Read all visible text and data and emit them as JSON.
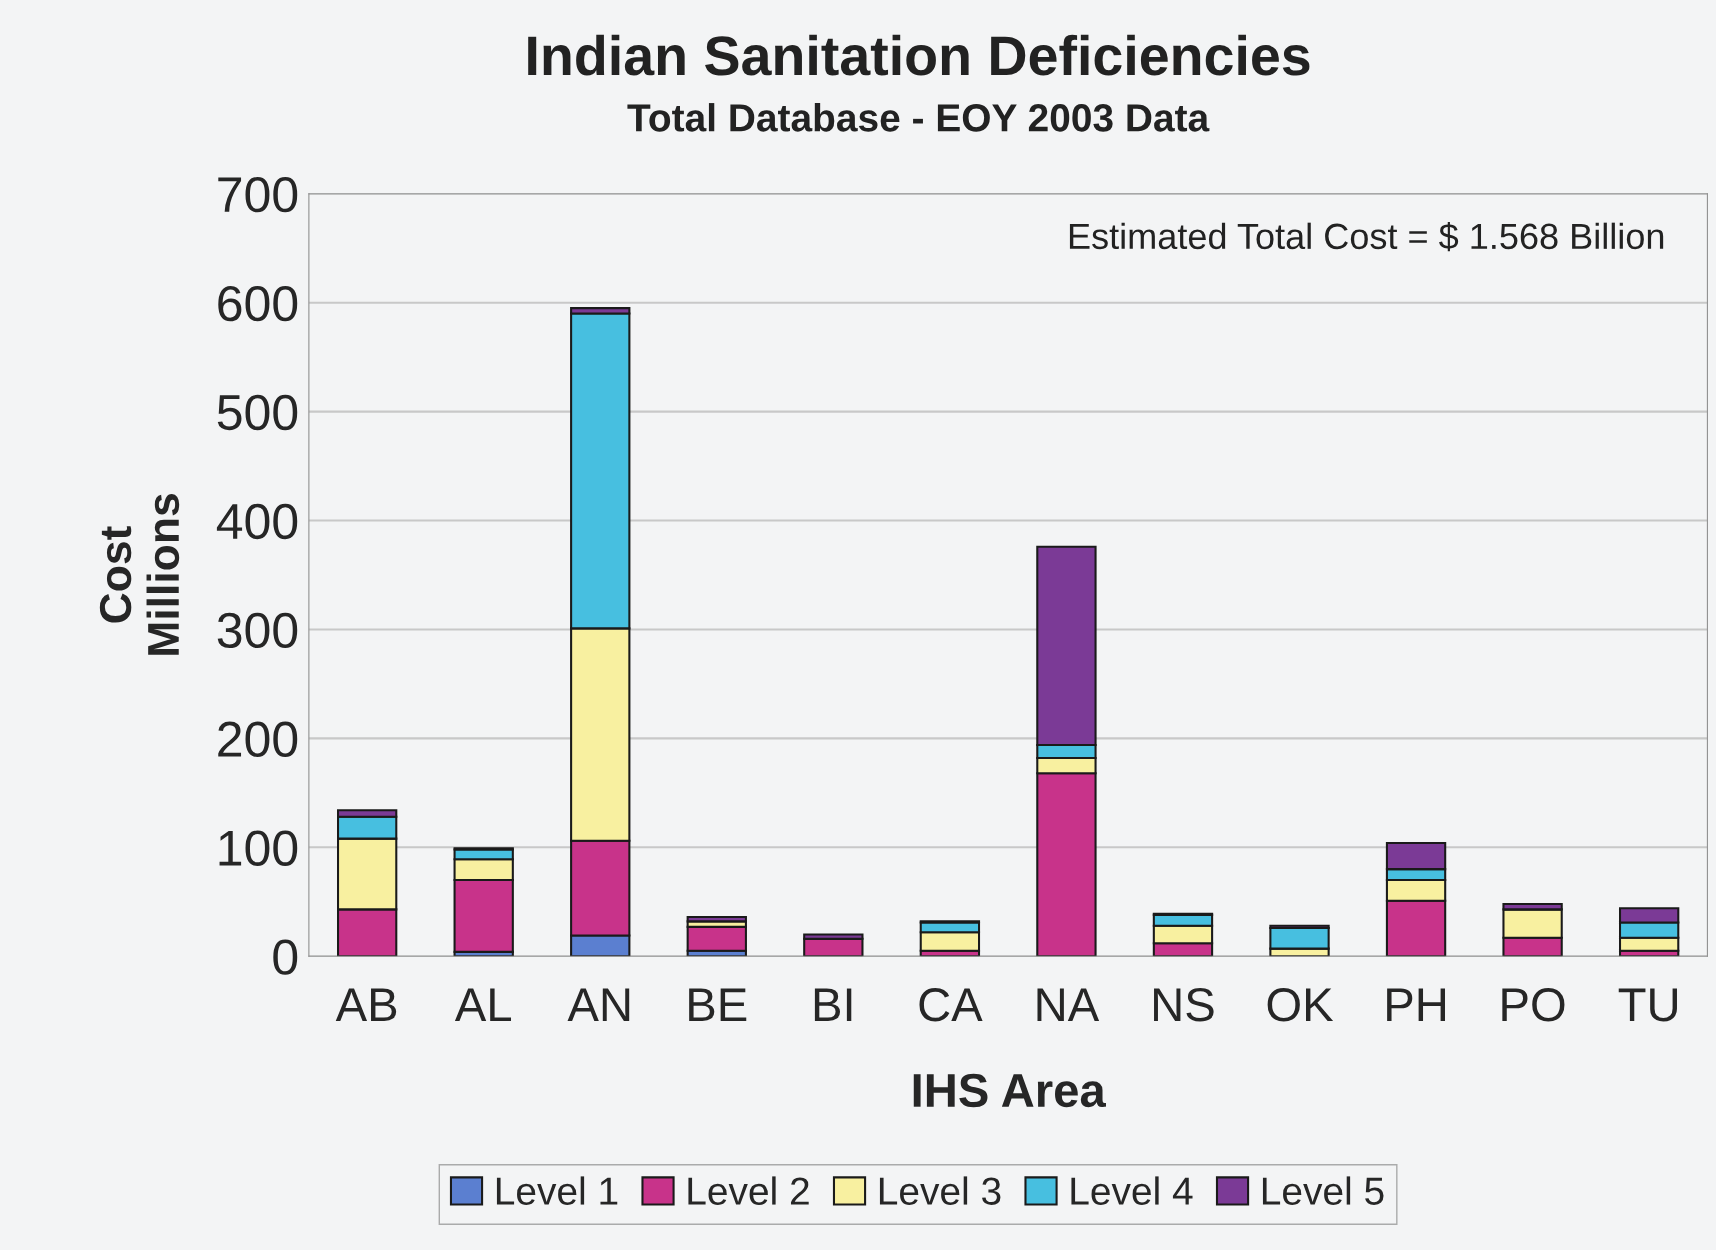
{
  "chart_data": {
    "type": "bar",
    "title": "Indian Sanitation Deficiencies",
    "subtitle": "Total Database - EOY 2003 Data",
    "xlabel": "IHS Area",
    "ylabel": "Cost\nMillions",
    "categories": [
      "AB",
      "AL",
      "AN",
      "BE",
      "BI",
      "CA",
      "NA",
      "NS",
      "OK",
      "PH",
      "PO",
      "TU"
    ],
    "stacked": true,
    "ylim": [
      0,
      700
    ],
    "yticks": [
      0,
      100,
      200,
      300,
      400,
      500,
      600,
      700
    ],
    "grid": "y",
    "legend": "bottom",
    "annotations": [
      "Estimated Total Cost = $ 1.568 Billion"
    ],
    "series": [
      {
        "name": "Level 1",
        "color": "#5b7fd0",
        "values": [
          null,
          4,
          19,
          5,
          0,
          0,
          null,
          0,
          null,
          0,
          0,
          null
        ]
      },
      {
        "name": "Level 2",
        "color": "#c8338a",
        "values": [
          43,
          66,
          87,
          22,
          16,
          5,
          168,
          12,
          0,
          51,
          17,
          5
        ]
      },
      {
        "name": "Level 3",
        "color": "#f8f0a0",
        "values": [
          65,
          19,
          195,
          5,
          0,
          17,
          14,
          16,
          7,
          19,
          26,
          12
        ]
      },
      {
        "name": "Level 4",
        "color": "#47bfe0",
        "values": [
          20,
          9,
          289,
          null,
          0,
          9,
          12,
          10,
          19,
          10,
          0,
          14
        ]
      },
      {
        "name": "Level 5",
        "color": "#7b3a96",
        "values": [
          6,
          1,
          5,
          4,
          4,
          1,
          182,
          1,
          2,
          24,
          5,
          13
        ]
      }
    ]
  }
}
